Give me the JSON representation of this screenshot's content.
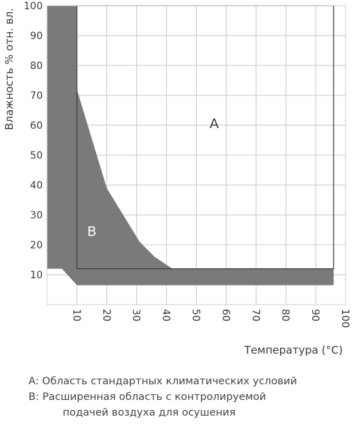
{
  "chart_data": {
    "type": "area",
    "xlabel": "Температура (°C)",
    "ylabel": "Влажность % отн. вл.",
    "xlim": [
      0,
      100
    ],
    "ylim": [
      0,
      100
    ],
    "x_ticks": [
      "10",
      "20",
      "30",
      "40",
      "50",
      "60",
      "70",
      "80",
      "90",
      "100"
    ],
    "y_ticks": [
      "10",
      "20",
      "30",
      "40",
      "50",
      "60",
      "70",
      "80",
      "90",
      "100"
    ],
    "grid": true,
    "regions": [
      {
        "label": "A",
        "fill": "#ffffff",
        "label_at": {
          "x": 56,
          "y": 59
        }
      },
      {
        "label": "B",
        "fill": "#7a7a7a",
        "label_at": {
          "x": 15,
          "y": 23
        },
        "boundary": [
          {
            "x": 0,
            "y": 100
          },
          {
            "x": 10,
            "y": 100
          },
          {
            "x": 10,
            "y": 72
          },
          {
            "x": 20,
            "y": 39
          },
          {
            "x": 31,
            "y": 21
          },
          {
            "x": 36,
            "y": 16
          },
          {
            "x": 42,
            "y": 12
          },
          {
            "x": 96,
            "y": 12
          },
          {
            "x": 96,
            "y": 6.5
          },
          {
            "x": 10,
            "y": 6.5
          },
          {
            "x": 5,
            "y": 12
          },
          {
            "x": 0,
            "y": 12
          }
        ]
      }
    ],
    "colors": {
      "grid": "#c8c8c8",
      "region_b": "#7a7a7a",
      "text": "#3a3a3a"
    }
  },
  "legend": {
    "line_a": "A: Область стандартных климатических условий",
    "line_b": "B: Расширенная область с контролируемой",
    "line_b_cont": "подачей воздуха для осушения"
  }
}
